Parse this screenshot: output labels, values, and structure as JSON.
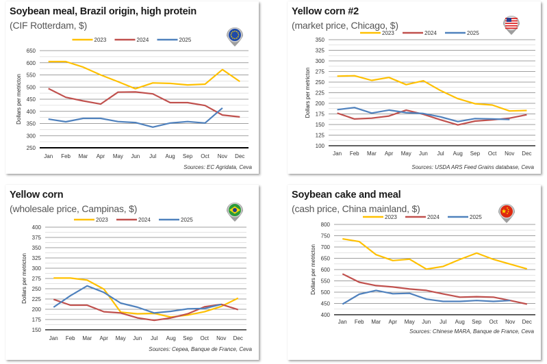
{
  "colors": {
    "2023": "#FFC000",
    "2024": "#C0504D",
    "2025": "#4F81BD"
  },
  "chart_data": [
    {
      "type": "line",
      "title": "Soybean meal, Brazil origin, high protein",
      "subtitle": "(CIF Rotterdam, $)",
      "region_icon": "eu-flag-pin-icon",
      "ylabel": "Dollars per metricton",
      "source": "Sources: EC Agridata, Ceva",
      "ylim": [
        250,
        650
      ],
      "ystep": 50,
      "yticks": [
        "250",
        "300",
        "350",
        "400",
        "450",
        "500",
        "550",
        "600",
        "650"
      ],
      "categories": [
        "Jan",
        "Feb",
        "Mar",
        "Apr",
        "May",
        "Jun",
        "Jul",
        "Aug",
        "Sep",
        "Oct",
        "Nov",
        "Dec"
      ],
      "legend": [
        "2023",
        "2024",
        "2025"
      ],
      "legend_position": "top",
      "grid": true,
      "series": [
        {
          "name": "2023",
          "values": [
            605,
            605,
            582,
            550,
            522,
            493,
            517,
            515,
            509,
            512,
            572,
            523
          ]
        },
        {
          "name": "2024",
          "values": [
            494,
            458,
            443,
            430,
            479,
            480,
            472,
            436,
            436,
            424,
            385,
            377
          ]
        },
        {
          "name": "2025",
          "values": [
            368,
            357,
            371,
            371,
            358,
            354,
            335,
            352,
            358,
            352,
            414
          ]
        }
      ]
    },
    {
      "type": "line",
      "title": "Yellow corn #2",
      "subtitle": "(market price, Chicago, $)",
      "region_icon": "us-flag-pin-icon",
      "ylabel": "Dollars per metricton",
      "source": "Sources: USDA ARS Feed Grains database, Ceva",
      "ylim": [
        100,
        350
      ],
      "ystep": 25,
      "yticks": [
        "100",
        "125",
        "150",
        "175",
        "200",
        "225",
        "250",
        "275",
        "300",
        "325",
        "350"
      ],
      "categories": [
        "Jan",
        "Feb",
        "Mar",
        "Apr",
        "May",
        "Jun",
        "Jul",
        "Aug",
        "Sep",
        "Oct",
        "Nov",
        "Dec"
      ],
      "legend": [
        "2023",
        "2024",
        "2025"
      ],
      "legend_position": "top",
      "grid": true,
      "series": [
        {
          "name": "2023",
          "values": [
            264,
            265,
            254,
            261,
            244,
            253,
            230,
            211,
            199,
            196,
            182,
            183
          ]
        },
        {
          "name": "2024",
          "values": [
            177,
            163,
            165,
            170,
            184,
            174,
            161,
            149,
            158,
            161,
            165,
            173
          ]
        },
        {
          "name": "2025",
          "values": [
            185,
            190,
            177,
            184,
            178,
            176,
            168,
            157,
            164,
            163,
            162
          ]
        }
      ]
    },
    {
      "type": "line",
      "title": "Yellow corn",
      "subtitle": "(wholesale price, Campinas, $)",
      "region_icon": "brazil-flag-pin-icon",
      "ylabel": "Dollars per metricton",
      "source": "Sources: Cepea, Banque de France, Ceva",
      "ylim": [
        150,
        400
      ],
      "ystep": 25,
      "yticks": [
        "150",
        "175",
        "200",
        "225",
        "250",
        "275",
        "300",
        "325",
        "350",
        "375",
        "400"
      ],
      "categories": [
        "Jan",
        "Feb",
        "Mar",
        "Apr",
        "May",
        "Jun",
        "Jul",
        "Aug",
        "Sep",
        "Oct",
        "Nov",
        "Dec"
      ],
      "legend": [
        "2023",
        "2024",
        "2025"
      ],
      "legend_position": "top",
      "grid": true,
      "series": [
        {
          "name": "2023",
          "values": [
            276,
            276,
            271,
            249,
            193,
            189,
            190,
            181,
            186,
            194,
            207,
            227
          ]
        },
        {
          "name": "2024",
          "values": [
            224,
            210,
            210,
            194,
            191,
            179,
            173,
            179,
            189,
            206,
            212,
            199
          ]
        },
        {
          "name": "2025",
          "values": [
            205,
            233,
            257,
            241,
            215,
            205,
            191,
            195,
            201,
            202,
            212
          ]
        }
      ]
    },
    {
      "type": "line",
      "title": "Soybean cake and meal",
      "subtitle": "(cash price, China mainland, $)",
      "region_icon": "china-flag-pin-icon",
      "ylabel": "Dollars per metricton",
      "source": "Sources: Chinese MARA, Banque de France, Ceva",
      "ylim": [
        400,
        800
      ],
      "ystep": 50,
      "yticks": [
        "400",
        "450",
        "500",
        "550",
        "600",
        "650",
        "700",
        "750",
        "800"
      ],
      "categories": [
        "Jan",
        "Feb",
        "Mar",
        "Apr",
        "May",
        "Jun",
        "Jul",
        "Aug",
        "Sep",
        "Oct",
        "Nov",
        "Dec"
      ],
      "legend": [
        "2023",
        "2024",
        "2025"
      ],
      "legend_position": "top",
      "grid": true,
      "series": [
        {
          "name": "2023",
          "values": [
            736,
            724,
            666,
            640,
            646,
            602,
            614,
            645,
            673,
            645,
            624,
            603
          ]
        },
        {
          "name": "2024",
          "values": [
            581,
            544,
            529,
            523,
            514,
            508,
            492,
            478,
            480,
            478,
            463,
            447
          ]
        },
        {
          "name": "2025",
          "values": [
            447,
            491,
            508,
            493,
            495,
            469,
            459,
            459,
            463,
            459,
            463
          ]
        }
      ]
    }
  ]
}
